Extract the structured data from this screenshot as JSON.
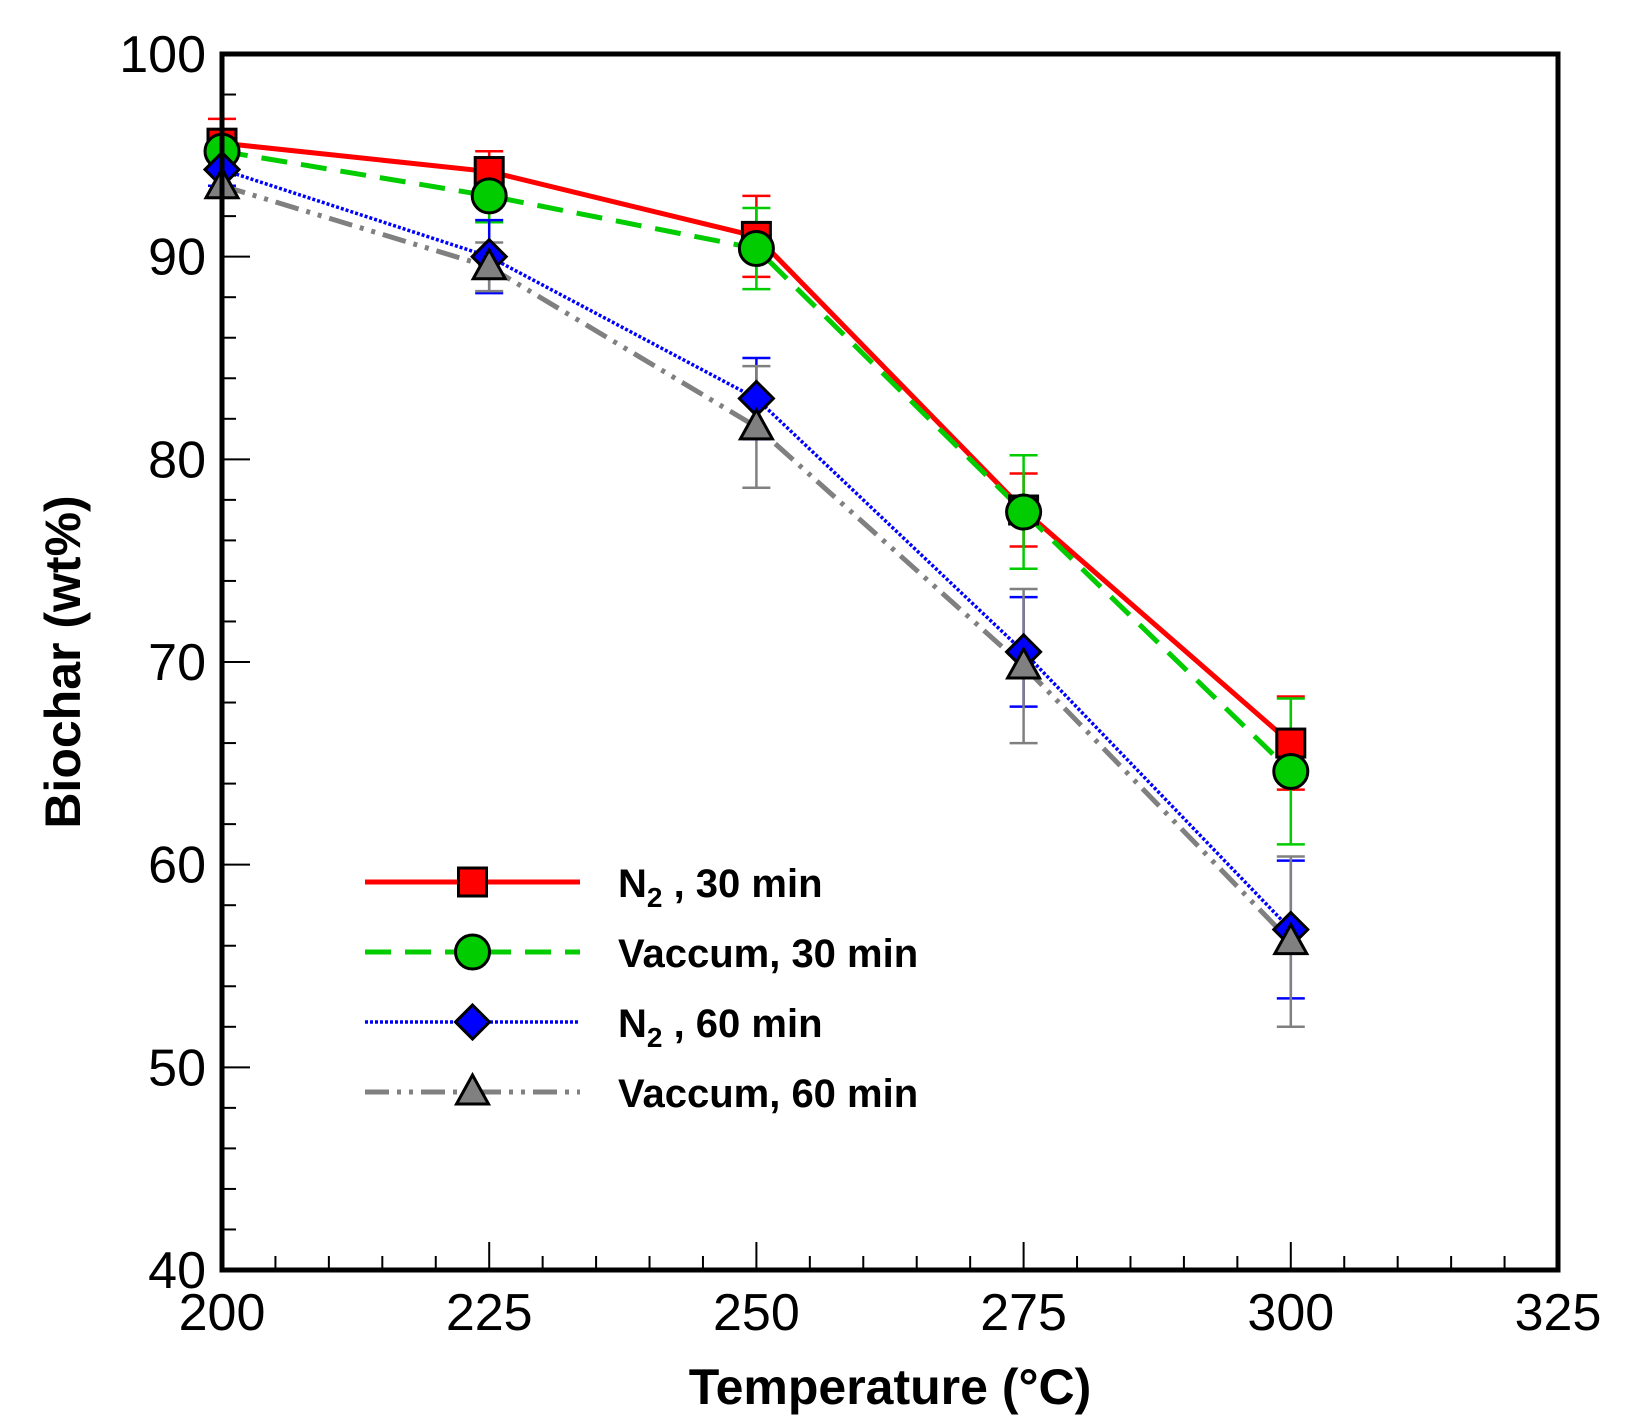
{
  "chart_data": {
    "type": "line",
    "title": "",
    "xlabel": "Temperature (°C)",
    "ylabel": "Biochar (wt%)",
    "xlim": [
      200,
      325
    ],
    "ylim": [
      40,
      100
    ],
    "xticks": [
      "200",
      "225",
      "250",
      "275",
      "300",
      "325"
    ],
    "yticks": [
      "40",
      "50",
      "60",
      "70",
      "80",
      "90",
      "100"
    ],
    "x": [
      200,
      225,
      250,
      275,
      300
    ],
    "legend_position": "lower-left",
    "series": [
      {
        "name": "N₂ , 30 min",
        "color": "#ff0000",
        "marker": "square",
        "line_style": "solid",
        "values": [
          95.6,
          94.2,
          91.0,
          77.5,
          66.0
        ],
        "errors": [
          1.2,
          1.0,
          2.0,
          1.8,
          2.3
        ]
      },
      {
        "name": "Vaccum, 30 min",
        "color": "#00cc00",
        "marker": "circle",
        "line_style": "dashed",
        "values": [
          95.2,
          93.0,
          90.4,
          77.4,
          64.6
        ],
        "errors": [
          0.6,
          1.3,
          2.0,
          2.8,
          3.6
        ]
      },
      {
        "name": "N₂ , 60 min",
        "color": "#0000ff",
        "marker": "diamond",
        "line_style": "dotted",
        "values": [
          94.3,
          90.0,
          83.0,
          70.5,
          56.8
        ],
        "errors": [
          0.8,
          1.8,
          2.0,
          2.7,
          3.4
        ]
      },
      {
        "name": "Vaccum, 60 min",
        "color": "#808080",
        "marker": "triangle",
        "line_style": "dash-dot-dot",
        "values": [
          93.5,
          89.5,
          81.6,
          69.8,
          56.2
        ],
        "errors": [
          0.6,
          1.2,
          3.0,
          3.8,
          4.2
        ]
      }
    ],
    "legend": {
      "entries": [
        {
          "main": "N",
          "sub": "2",
          "rest": " , 30 min"
        },
        {
          "main": "Vaccum, 30 min",
          "sub": "",
          "rest": ""
        },
        {
          "main": "N",
          "sub": "2",
          "rest": " , 60 min"
        },
        {
          "main": "Vaccum, 60 min",
          "sub": "",
          "rest": ""
        }
      ]
    }
  }
}
